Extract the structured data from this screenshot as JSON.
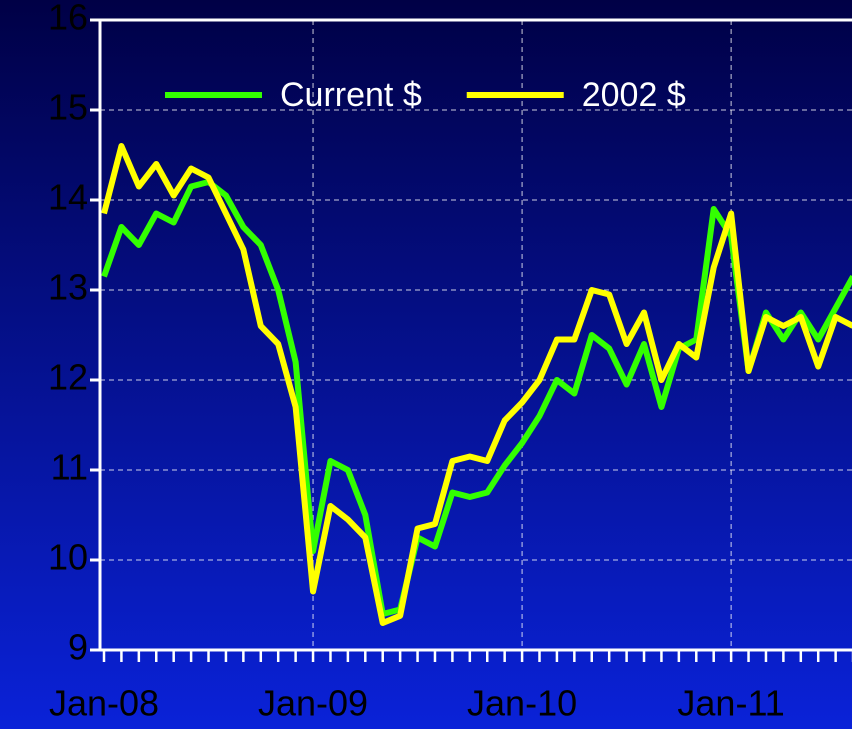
{
  "chart_data": {
    "type": "line",
    "categories": [
      "Jan-08",
      null,
      null,
      null,
      null,
      null,
      null,
      null,
      null,
      null,
      null,
      null,
      "Jan-09",
      null,
      null,
      null,
      null,
      null,
      null,
      null,
      null,
      null,
      null,
      null,
      "Jan-10",
      null,
      null,
      null,
      null,
      null,
      null,
      null,
      null,
      null,
      null,
      null,
      "Jan-11",
      null,
      null,
      null,
      null,
      null,
      null,
      null
    ],
    "series": [
      {
        "name": "Current $",
        "color": "#33ff00",
        "values": [
          13.15,
          13.7,
          13.5,
          13.85,
          13.75,
          14.15,
          14.2,
          14.05,
          13.7,
          13.5,
          13.0,
          12.2,
          10.1,
          11.1,
          11.0,
          10.5,
          9.4,
          9.45,
          10.25,
          10.15,
          10.75,
          10.7,
          10.75,
          11.05,
          11.3,
          11.6,
          12.0,
          11.85,
          12.5,
          12.35,
          11.95,
          12.4,
          11.7,
          12.35,
          12.45,
          13.9,
          13.6,
          12.1,
          12.75,
          12.45,
          12.75,
          12.45,
          12.8,
          13.15
        ]
      },
      {
        "name": "2002 $",
        "color": "#ffff00",
        "values": [
          13.85,
          14.6,
          14.15,
          14.4,
          14.05,
          14.35,
          14.25,
          13.85,
          13.45,
          12.6,
          12.4,
          11.7,
          9.65,
          10.6,
          10.45,
          10.25,
          9.3,
          9.38,
          10.35,
          10.4,
          11.1,
          11.15,
          11.1,
          11.55,
          11.75,
          12.0,
          12.45,
          12.45,
          13.0,
          12.95,
          12.4,
          12.75,
          12.0,
          12.4,
          12.25,
          13.25,
          13.85,
          12.1,
          12.7,
          12.6,
          12.7,
          12.15,
          12.7,
          12.6
        ]
      }
    ],
    "ylim": [
      9,
      16
    ],
    "yticks": [
      9,
      10,
      11,
      12,
      13,
      14,
      15,
      16
    ],
    "grid": true,
    "legend": "upper center"
  }
}
